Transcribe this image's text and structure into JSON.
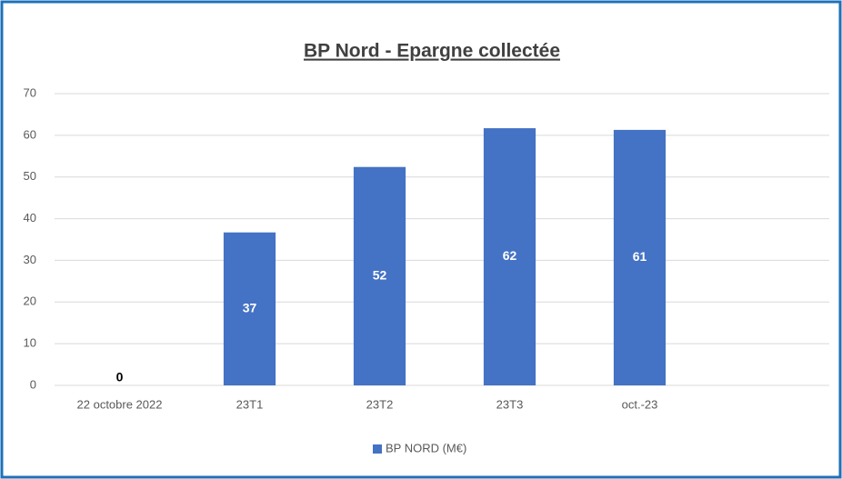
{
  "chart_data": {
    "type": "bar",
    "title": "BP Nord - Epargne collectée",
    "categories": [
      "22 octobre 2022",
      "23T1",
      "23T2",
      "23T3",
      "oct.-23",
      null
    ],
    "series": [
      {
        "name": "BP NORD (M€)",
        "color": "#4472c4",
        "values": [
          0,
          36.7,
          52.4,
          61.7,
          61.3,
          null
        ],
        "value_labels": [
          "0",
          "37",
          "52",
          "62",
          "61",
          null
        ]
      }
    ],
    "ylim": [
      0,
      70
    ],
    "yticks": [
      0,
      10,
      20,
      30,
      40,
      50,
      60,
      70
    ],
    "grid": true,
    "legend": "bottom"
  }
}
